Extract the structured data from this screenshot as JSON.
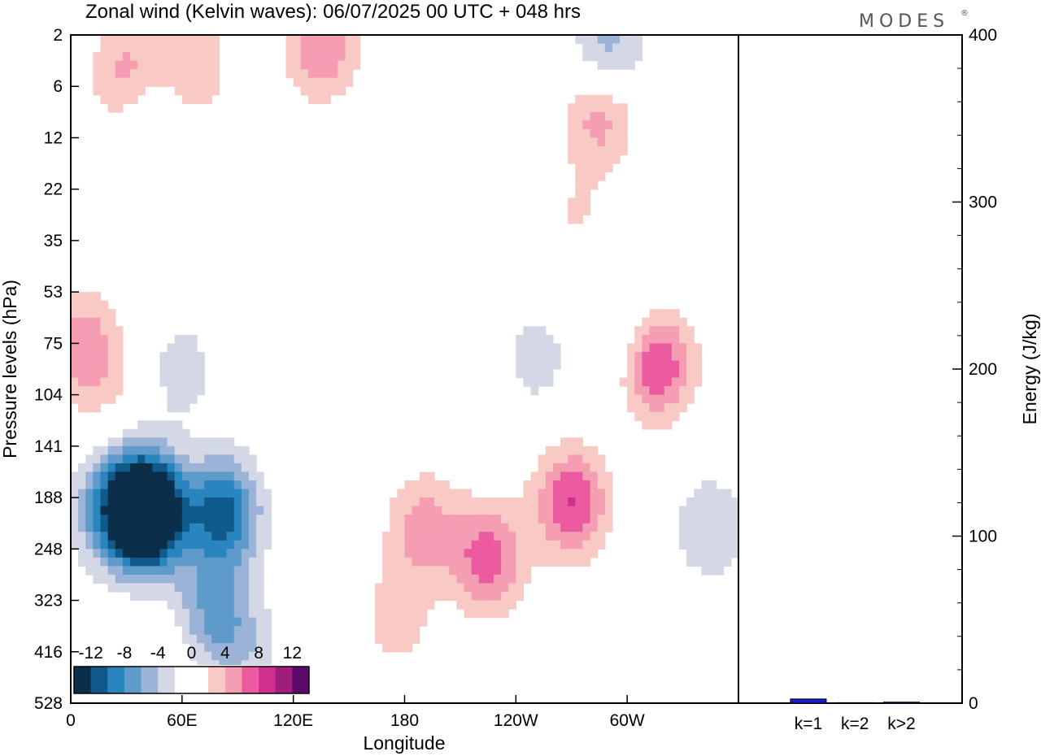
{
  "header": {
    "title": "Zonal wind (Kelvin waves):  06/07/2025  00 UTC  + 048 hrs",
    "brand": "MODES",
    "brand_mark": "®"
  },
  "chart_data": [
    {
      "type": "heatmap",
      "title": "Zonal wind (Kelvin waves):  06/07/2025  00 UTC  + 048 hrs",
      "xlabel": "Longitude",
      "ylabel": "Pressure levels (hPa)",
      "x_tick_labels": [
        "0",
        "60E",
        "120E",
        "180",
        "120W",
        "60W"
      ],
      "x_ticks_deg": [
        0,
        60,
        120,
        180,
        240,
        300
      ],
      "x_range_deg": [
        0,
        360
      ],
      "y_tick_labels": [
        "2",
        "6",
        "12",
        "22",
        "35",
        "53",
        "75",
        "104",
        "141",
        "188",
        "248",
        "323",
        "416",
        "528"
      ],
      "y_scale": "level-indexed (top 2 hPa, bottom 528 hPa)",
      "colorbar": {
        "labels": [
          "-12",
          "-8",
          "-4",
          "0",
          "4",
          "8",
          "12"
        ],
        "colors": [
          "#0b2e4b",
          "#0f5a8a",
          "#2a85bf",
          "#5e9bcb",
          "#9ab3d6",
          "#d3d7e6",
          "#ffffff",
          "#ffffff",
          "#f8c9c5",
          "#f49db3",
          "#ec5ba0",
          "#d12f8f",
          "#a01d7e",
          "#5b0a6b"
        ],
        "level_bounds": [
          -14,
          -12,
          -10,
          -8,
          -6,
          -4,
          -2,
          0,
          2,
          4,
          6,
          8,
          10,
          12,
          14
        ]
      },
      "features": [
        {
          "lon": 42,
          "lev": 9.4,
          "value": -13
        },
        {
          "lon": 37,
          "lev": 9.1,
          "value": -11
        },
        {
          "lon": 82,
          "lev": 9.3,
          "value": -11
        },
        {
          "lon": 18,
          "lev": 9.3,
          "value": -5
        },
        {
          "lon": 77,
          "lev": 11.2,
          "value": -6
        },
        {
          "lon": 94,
          "lev": 12.0,
          "value": -3
        },
        {
          "lon": 60,
          "lev": 6.5,
          "value": -3
        },
        {
          "lon": 20,
          "lev": 6.7,
          "value": 2
        },
        {
          "lon": 190,
          "lev": 9.6,
          "value": 5
        },
        {
          "lon": 225,
          "lev": 10.2,
          "value": 7
        },
        {
          "lon": 270,
          "lev": 9.1,
          "value": 8
        },
        {
          "lon": 315,
          "lev": 6.4,
          "value": 9
        },
        {
          "lon": 175,
          "lev": 11.4,
          "value": 3
        },
        {
          "lon": 215,
          "lev": 7.1,
          "value": 2
        },
        {
          "lon": 250,
          "lev": 6.3,
          "value": -3
        },
        {
          "lon": 300,
          "lev": 6.0,
          "value": -3
        },
        {
          "lon": 345,
          "lev": 9.6,
          "value": -4
        },
        {
          "lon": 5,
          "lev": 6.0,
          "value": 5
        },
        {
          "lon": 30,
          "lev": 0.8,
          "value": 5
        },
        {
          "lon": 65,
          "lev": 0.6,
          "value": 4
        },
        {
          "lon": 135,
          "lev": 0.2,
          "value": 6
        },
        {
          "lon": 285,
          "lev": 1.6,
          "value": 5
        },
        {
          "lon": 290,
          "lev": 0.2,
          "value": -5
        },
        {
          "lon": 42,
          "lev": 1.7,
          "value": -3
        },
        {
          "lon": 272,
          "lev": 3.6,
          "value": 2
        },
        {
          "lon": 130,
          "lev": 6.6,
          "value": 2
        },
        {
          "lon": 350,
          "lev": 2.0,
          "value": -2
        },
        {
          "lon": 45,
          "lev": 12.6,
          "value": 2
        }
      ]
    },
    {
      "type": "bar",
      "categories": [
        "k=1",
        "k=2",
        "k>2"
      ],
      "values": [
        2.5,
        0.3,
        0.6
      ],
      "ylabel": "Energy (J/kg)",
      "y_tick_labels": [
        "0",
        "100",
        "200",
        "300",
        "400"
      ],
      "ylim": [
        0,
        400
      ],
      "bar_color": "#1a1ad4"
    }
  ]
}
